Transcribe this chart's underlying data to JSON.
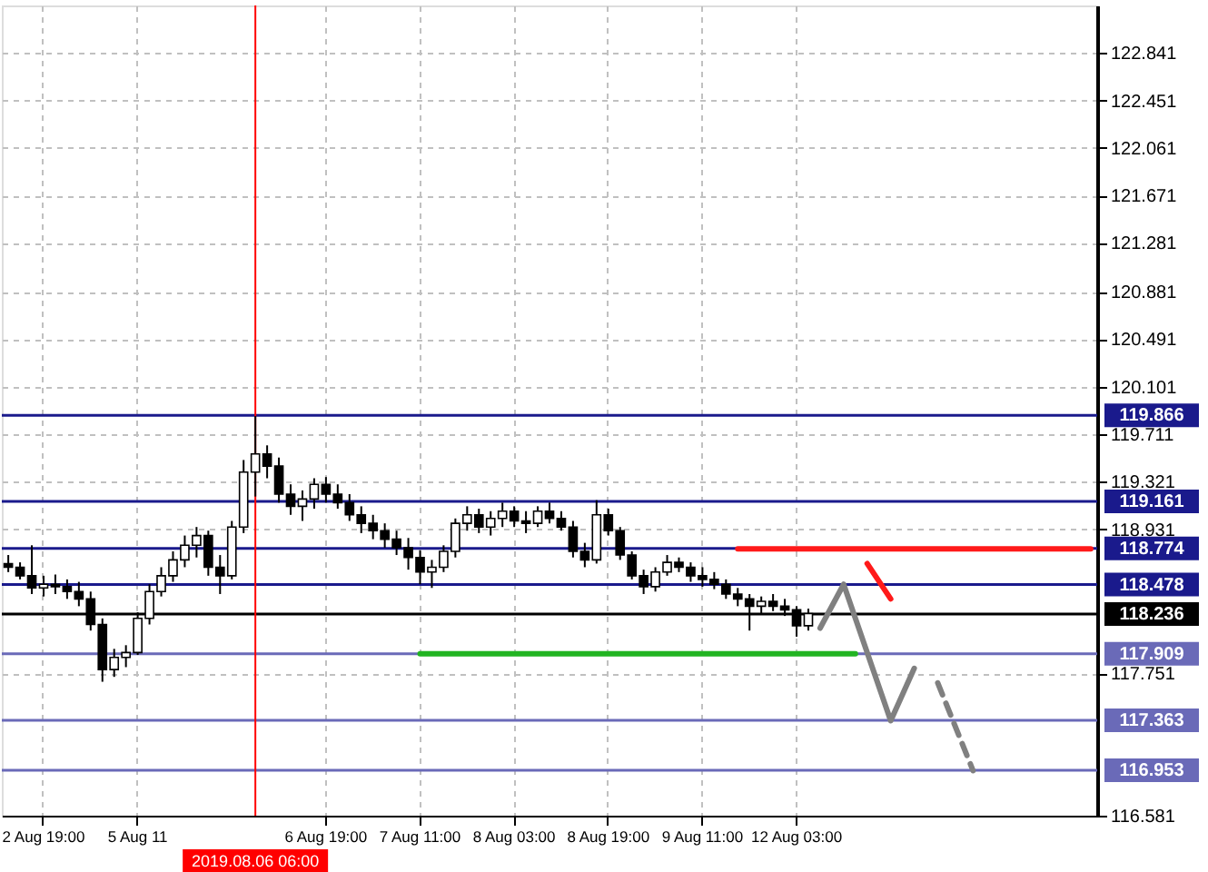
{
  "chart_data": {
    "type": "candlestick",
    "categories": [
      null,
      null,
      null,
      "2 Aug 19:00",
      null,
      null,
      null,
      null,
      null,
      null,
      null,
      "5 Aug 11",
      null,
      null,
      null,
      null,
      null,
      null,
      null,
      null,
      null,
      "2019.08.06 06:00",
      null,
      null,
      null,
      null,
      null,
      "6 Aug 19:00",
      null,
      null,
      null,
      null,
      null,
      null,
      null,
      "7 Aug 11:00",
      null,
      null,
      null,
      null,
      null,
      null,
      null,
      "8 Aug 03:00",
      null,
      null,
      null,
      null,
      null,
      null,
      null,
      "8 Aug 19:00",
      null,
      null,
      null,
      null,
      null,
      null,
      null,
      "9 Aug 11:00",
      null,
      null,
      null,
      null,
      null,
      null,
      null,
      "12 Aug 03:00",
      null,
      null,
      null,
      null,
      null,
      null,
      null,
      null,
      null,
      null,
      null,
      null,
      null,
      null,
      null,
      null,
      null,
      null,
      null,
      null,
      null,
      null,
      null,
      null,
      null
    ],
    "ohlc": [
      [
        118.65,
        118.72,
        118.58,
        118.62
      ],
      [
        118.62,
        118.66,
        118.52,
        118.55
      ],
      [
        118.55,
        118.8,
        118.4,
        118.45
      ],
      [
        118.45,
        118.55,
        118.38,
        118.48
      ],
      [
        118.48,
        118.56,
        118.4,
        118.46
      ],
      [
        118.46,
        118.52,
        118.36,
        118.42
      ],
      [
        118.42,
        118.5,
        118.3,
        118.36
      ],
      [
        118.36,
        118.42,
        118.1,
        118.15
      ],
      [
        118.15,
        118.2,
        117.68,
        117.78
      ],
      [
        117.78,
        117.95,
        117.72,
        117.88
      ],
      [
        117.88,
        117.98,
        117.8,
        117.92
      ],
      [
        117.92,
        118.25,
        117.9,
        118.2
      ],
      [
        118.2,
        118.48,
        118.15,
        118.42
      ],
      [
        118.42,
        118.62,
        118.38,
        118.55
      ],
      [
        118.55,
        118.75,
        118.5,
        118.68
      ],
      [
        118.68,
        118.88,
        118.62,
        118.8
      ],
      [
        118.8,
        118.95,
        118.7,
        118.88
      ],
      [
        118.88,
        118.92,
        118.55,
        118.62
      ],
      [
        118.62,
        118.72,
        118.4,
        118.55
      ],
      [
        118.55,
        119.0,
        118.52,
        118.95
      ],
      [
        118.95,
        119.5,
        118.9,
        119.4
      ],
      [
        119.4,
        119.86,
        119.2,
        119.55
      ],
      [
        119.55,
        119.62,
        119.35,
        119.45
      ],
      [
        119.45,
        119.52,
        119.15,
        119.22
      ],
      [
        119.22,
        119.3,
        119.05,
        119.12
      ],
      [
        119.12,
        119.25,
        119.0,
        119.18
      ],
      [
        119.18,
        119.35,
        119.1,
        119.3
      ],
      [
        119.3,
        119.36,
        119.15,
        119.22
      ],
      [
        119.22,
        119.3,
        119.1,
        119.15
      ],
      [
        119.15,
        119.22,
        119.0,
        119.05
      ],
      [
        119.05,
        119.12,
        118.9,
        118.98
      ],
      [
        118.98,
        119.05,
        118.85,
        118.92
      ],
      [
        118.92,
        118.98,
        118.78,
        118.85
      ],
      [
        118.85,
        118.92,
        118.72,
        118.78
      ],
      [
        118.78,
        118.86,
        118.6,
        118.7
      ],
      [
        118.7,
        118.76,
        118.48,
        118.58
      ],
      [
        118.58,
        118.68,
        118.45,
        118.62
      ],
      [
        118.62,
        118.8,
        118.58,
        118.75
      ],
      [
        118.75,
        119.02,
        118.7,
        118.98
      ],
      [
        118.98,
        119.12,
        118.92,
        119.05
      ],
      [
        119.05,
        119.1,
        118.9,
        118.95
      ],
      [
        118.95,
        119.08,
        118.88,
        119.02
      ],
      [
        119.02,
        119.15,
        118.95,
        119.08
      ],
      [
        119.08,
        119.12,
        118.95,
        119.0
      ],
      [
        119.0,
        119.08,
        118.9,
        118.98
      ],
      [
        118.98,
        119.12,
        118.95,
        119.08
      ],
      [
        119.08,
        119.15,
        118.98,
        119.02
      ],
      [
        119.02,
        119.08,
        118.92,
        118.95
      ],
      [
        118.95,
        119.0,
        118.7,
        118.75
      ],
      [
        118.75,
        118.82,
        118.62,
        118.68
      ],
      [
        118.68,
        119.17,
        118.65,
        119.05
      ],
      [
        119.05,
        119.1,
        118.88,
        118.92
      ],
      [
        118.92,
        118.95,
        118.68,
        118.72
      ],
      [
        118.72,
        118.75,
        118.52,
        118.55
      ],
      [
        118.55,
        118.6,
        118.4,
        118.46
      ],
      [
        118.46,
        118.62,
        118.42,
        118.58
      ],
      [
        118.58,
        118.72,
        118.55,
        118.66
      ],
      [
        118.66,
        118.7,
        118.58,
        118.62
      ],
      [
        118.62,
        118.66,
        118.5,
        118.55
      ],
      [
        118.55,
        118.62,
        118.46,
        118.52
      ],
      [
        118.52,
        118.58,
        118.44,
        118.48
      ],
      [
        118.48,
        118.52,
        118.36,
        118.4
      ],
      [
        118.4,
        118.45,
        118.3,
        118.36
      ],
      [
        118.36,
        118.4,
        118.1,
        118.3
      ],
      [
        118.3,
        118.38,
        118.24,
        118.34
      ],
      [
        118.34,
        118.4,
        118.26,
        118.3
      ],
      [
        118.3,
        118.36,
        118.22,
        118.27
      ],
      [
        118.27,
        118.3,
        118.05,
        118.14
      ],
      [
        118.14,
        118.28,
        118.1,
        118.24
      ],
      null,
      null,
      null,
      null,
      null,
      null,
      null,
      null,
      null,
      null,
      null,
      null,
      null,
      null,
      null,
      null,
      null,
      null,
      null,
      null,
      null,
      null,
      null,
      null
    ],
    "series": [
      {
        "type": "line",
        "color": "#22b422",
        "values": [
          null,
          null,
          null,
          null,
          null,
          null,
          null,
          null,
          null,
          null,
          null,
          null,
          null,
          null,
          null,
          null,
          null,
          null,
          null,
          null,
          null,
          null,
          null,
          null,
          null,
          null,
          null,
          null,
          null,
          null,
          null,
          null,
          null,
          null,
          null,
          117.91,
          117.91,
          117.91,
          117.91,
          117.91,
          117.91,
          117.91,
          117.91,
          117.91,
          117.91,
          117.91,
          117.91,
          117.91,
          117.91,
          117.91,
          117.91,
          117.91,
          117.91,
          117.91,
          117.91,
          117.91,
          117.91,
          117.91,
          117.91,
          117.91,
          117.91,
          117.91,
          117.91,
          117.91,
          117.91,
          117.91,
          117.91,
          117.91,
          117.91,
          117.91,
          117.91,
          117.91,
          117.91,
          null,
          null,
          null,
          null,
          null,
          null,
          null,
          null,
          null,
          null,
          null,
          null,
          null,
          null,
          null,
          null,
          null,
          null,
          null,
          null
        ]
      },
      {
        "type": "line",
        "color": "#ff1a1a",
        "values": [
          null,
          null,
          null,
          null,
          null,
          null,
          null,
          null,
          null,
          null,
          null,
          null,
          null,
          null,
          null,
          null,
          null,
          null,
          null,
          null,
          null,
          null,
          null,
          null,
          null,
          null,
          null,
          null,
          null,
          null,
          null,
          null,
          null,
          null,
          null,
          null,
          null,
          null,
          null,
          null,
          null,
          null,
          null,
          null,
          null,
          null,
          null,
          null,
          null,
          null,
          null,
          null,
          null,
          null,
          null,
          null,
          null,
          null,
          null,
          null,
          null,
          null,
          118.77,
          118.77,
          118.77,
          118.77,
          118.77,
          118.77,
          118.77,
          118.77,
          118.77,
          118.77,
          118.77,
          118.77,
          118.77,
          118.77,
          118.77,
          118.77,
          118.77,
          118.77,
          118.77,
          118.77,
          118.77,
          118.77,
          118.77,
          118.77,
          118.77,
          118.77,
          118.77,
          118.77,
          118.77,
          118.77,
          118.77
        ]
      },
      {
        "type": "line",
        "color": "#808080",
        "values": [
          null,
          null,
          null,
          null,
          null,
          null,
          null,
          null,
          null,
          null,
          null,
          null,
          null,
          null,
          null,
          null,
          null,
          null,
          null,
          null,
          null,
          null,
          null,
          null,
          null,
          null,
          null,
          null,
          null,
          null,
          null,
          null,
          null,
          null,
          null,
          null,
          null,
          null,
          null,
          null,
          null,
          null,
          null,
          null,
          null,
          null,
          null,
          null,
          null,
          null,
          null,
          null,
          null,
          null,
          null,
          null,
          null,
          null,
          null,
          null,
          null,
          null,
          null,
          null,
          null,
          null,
          null,
          null,
          null,
          118.12,
          null,
          118.48,
          null,
          null,
          null,
          117.36,
          null,
          117.79,
          null,
          null,
          null,
          null,
          null,
          null,
          null,
          null,
          null,
          null,
          null,
          null,
          null,
          null,
          null
        ]
      },
      {
        "type": "line",
        "color": "#ff1a1a",
        "values": [
          null,
          null,
          null,
          null,
          null,
          null,
          null,
          null,
          null,
          null,
          null,
          null,
          null,
          null,
          null,
          null,
          null,
          null,
          null,
          null,
          null,
          null,
          null,
          null,
          null,
          null,
          null,
          null,
          null,
          null,
          null,
          null,
          null,
          null,
          null,
          null,
          null,
          null,
          null,
          null,
          null,
          null,
          null,
          null,
          null,
          null,
          null,
          null,
          null,
          null,
          null,
          null,
          null,
          null,
          null,
          null,
          null,
          null,
          null,
          null,
          null,
          null,
          null,
          null,
          null,
          null,
          null,
          null,
          null,
          null,
          null,
          null,
          null,
          118.65,
          null,
          118.36,
          null,
          null,
          null,
          null,
          null,
          null,
          null,
          null,
          null,
          null,
          null,
          null,
          null,
          null,
          null,
          null,
          null
        ]
      },
      {
        "type": "line",
        "color": "#808080",
        "line_style": "dashed",
        "values": [
          null,
          null,
          null,
          null,
          null,
          null,
          null,
          null,
          null,
          null,
          null,
          null,
          null,
          null,
          null,
          null,
          null,
          null,
          null,
          null,
          null,
          null,
          null,
          null,
          null,
          null,
          null,
          null,
          null,
          null,
          null,
          null,
          null,
          null,
          null,
          null,
          null,
          null,
          null,
          null,
          null,
          null,
          null,
          null,
          null,
          null,
          null,
          null,
          null,
          null,
          null,
          null,
          null,
          null,
          null,
          null,
          null,
          null,
          null,
          null,
          null,
          null,
          null,
          null,
          null,
          null,
          null,
          null,
          null,
          null,
          null,
          null,
          null,
          null,
          null,
          null,
          null,
          null,
          null,
          117.67,
          null,
          null,
          116.95,
          null,
          null,
          null,
          null,
          null,
          null,
          null,
          null,
          null,
          null
        ]
      }
    ],
    "ylim": [
      116.581,
      123.23
    ],
    "yticks": [
      116.581,
      117.751,
      118.931,
      119.321,
      119.711,
      120.101,
      120.491,
      120.881,
      121.281,
      121.671,
      122.061,
      122.451,
      122.841
    ],
    "ref_lines": [
      {
        "axis": "y",
        "value": 119.866,
        "label": "119.866",
        "color": "#1a1a8c"
      },
      {
        "axis": "y",
        "value": 119.161,
        "label": "119.161",
        "color": "#1a1a8c"
      },
      {
        "axis": "y",
        "value": 118.774,
        "label": "118.774",
        "color": "#1a1a8c"
      },
      {
        "axis": "y",
        "value": 118.478,
        "label": "118.478",
        "color": "#1a1a8c"
      },
      {
        "axis": "y",
        "value": 118.236,
        "label": "118.236",
        "color": "#000000"
      },
      {
        "axis": "y",
        "value": 117.909,
        "label": "117.909",
        "color": "#6a6ab8"
      },
      {
        "axis": "y",
        "value": 117.363,
        "label": "117.363",
        "color": "#6a6ab8"
      },
      {
        "axis": "y",
        "value": 116.953,
        "label": "116.953",
        "color": "#6a6ab8"
      },
      {
        "axis": "x",
        "value": "2019.08.06 06:00",
        "color": "#ff0000"
      }
    ],
    "grid": true
  }
}
